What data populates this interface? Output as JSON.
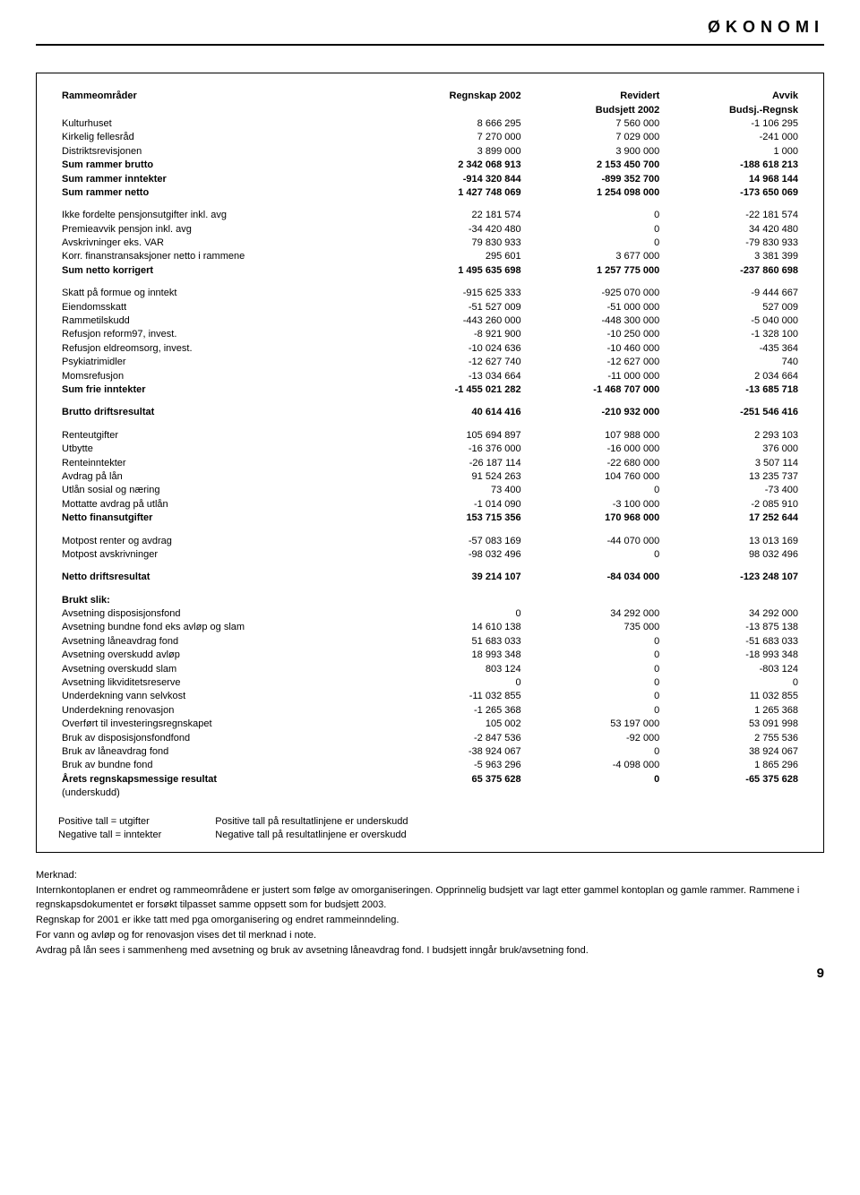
{
  "header": {
    "section_label": "ØKONOMI"
  },
  "table": {
    "columns": [
      {
        "key": "label",
        "header1": "Rammeområder",
        "header2": ""
      },
      {
        "key": "c1",
        "header1": "Regnskap 2002",
        "header2": ""
      },
      {
        "key": "c2",
        "header1": "Revidert",
        "header2": "Budsjett 2002"
      },
      {
        "key": "c3",
        "header1": "Avvik",
        "header2": "Budsj.-Regnsk"
      }
    ],
    "groups": [
      [
        {
          "label": "Kulturhuset",
          "c1": "8 666 295",
          "c2": "7 560 000",
          "c3": "-1 106 295"
        },
        {
          "label": "Kirkelig fellesråd",
          "c1": "7 270 000",
          "c2": "7 029 000",
          "c3": "-241 000"
        },
        {
          "label": "Distriktsrevisjonen",
          "c1": "3 899 000",
          "c2": "3 900 000",
          "c3": "1 000"
        },
        {
          "label": "Sum rammer brutto",
          "c1": "2 342 068 913",
          "c2": "2 153 450 700",
          "c3": "-188 618 213",
          "bold": true
        },
        {
          "label": "Sum rammer inntekter",
          "c1": "-914 320 844",
          "c2": "-899 352 700",
          "c3": "14 968 144",
          "bold": true
        },
        {
          "label": "Sum rammer netto",
          "c1": "1 427 748 069",
          "c2": "1 254 098 000",
          "c3": "-173 650 069",
          "bold": true
        }
      ],
      [
        {
          "label": "Ikke fordelte pensjonsutgifter inkl. avg",
          "c1": "22 181 574",
          "c2": "0",
          "c3": "-22 181 574"
        },
        {
          "label": "Premieavvik pensjon inkl. avg",
          "c1": "-34 420 480",
          "c2": "0",
          "c3": "34 420 480"
        },
        {
          "label": "Avskrivninger eks. VAR",
          "c1": "79 830 933",
          "c2": "0",
          "c3": "-79 830 933"
        },
        {
          "label": "Korr. finanstransaksjoner netto i rammene",
          "c1": "295 601",
          "c2": "3 677 000",
          "c3": "3 381 399"
        },
        {
          "label": "Sum netto korrigert",
          "c1": "1 495 635 698",
          "c2": "1 257 775 000",
          "c3": "-237 860 698",
          "bold": true
        }
      ],
      [
        {
          "label": "Skatt på formue og inntekt",
          "c1": "-915 625 333",
          "c2": "-925 070 000",
          "c3": "-9 444 667"
        },
        {
          "label": "Eiendomsskatt",
          "c1": "-51 527 009",
          "c2": "-51 000 000",
          "c3": "527 009"
        },
        {
          "label": "Rammetilskudd",
          "c1": "-443 260 000",
          "c2": "-448 300 000",
          "c3": "-5 040 000"
        },
        {
          "label": "Refusjon reform97, invest.",
          "c1": "-8 921 900",
          "c2": "-10 250 000",
          "c3": "-1 328 100"
        },
        {
          "label": "Refusjon eldreomsorg, invest.",
          "c1": "-10 024 636",
          "c2": "-10 460 000",
          "c3": "-435 364"
        },
        {
          "label": "Psykiatrimidler",
          "c1": "-12 627 740",
          "c2": "-12 627 000",
          "c3": "740"
        },
        {
          "label": "Momsrefusjon",
          "c1": "-13 034 664",
          "c2": "-11 000 000",
          "c3": "2 034 664"
        },
        {
          "label": "Sum frie inntekter",
          "c1": "-1 455 021 282",
          "c2": "-1 468 707 000",
          "c3": "-13 685 718",
          "bold": true
        }
      ],
      [
        {
          "label": "Brutto driftsresultat",
          "c1": "40 614 416",
          "c2": "-210 932 000",
          "c3": "-251 546 416",
          "bold": true
        }
      ],
      [
        {
          "label": "Renteutgifter",
          "c1": "105 694 897",
          "c2": "107 988 000",
          "c3": "2 293 103"
        },
        {
          "label": "Utbytte",
          "c1": "-16 376 000",
          "c2": "-16 000 000",
          "c3": "376 000"
        },
        {
          "label": "Renteinntekter",
          "c1": "-26 187 114",
          "c2": "-22 680 000",
          "c3": "3 507 114"
        },
        {
          "label": "Avdrag på lån",
          "c1": "91 524 263",
          "c2": "104 760 000",
          "c3": "13 235 737"
        },
        {
          "label": "Utlån sosial og næring",
          "c1": "73 400",
          "c2": "0",
          "c3": "-73 400"
        },
        {
          "label": "Mottatte avdrag på utlån",
          "c1": "-1 014 090",
          "c2": "-3 100 000",
          "c3": "-2 085 910"
        },
        {
          "label": "Netto finansutgifter",
          "c1": "153 715 356",
          "c2": "170 968 000",
          "c3": "17 252 644",
          "bold": true
        }
      ],
      [
        {
          "label": "Motpost renter og avdrag",
          "c1": "-57 083 169",
          "c2": "-44 070 000",
          "c3": "13 013 169"
        },
        {
          "label": "Motpost avskrivninger",
          "c1": "-98 032 496",
          "c2": "0",
          "c3": "98 032 496"
        }
      ],
      [
        {
          "label": "Netto driftsresultat",
          "c1": "39 214 107",
          "c2": "-84 034 000",
          "c3": "-123 248 107",
          "bold": true
        }
      ],
      [
        {
          "label": "Brukt slik:",
          "c1": "",
          "c2": "",
          "c3": "",
          "bold": true
        },
        {
          "label": "Avsetning disposisjonsfond",
          "c1": "0",
          "c2": "34 292 000",
          "c3": "34 292 000"
        },
        {
          "label": "Avsetning bundne fond eks avløp og slam",
          "c1": "14 610 138",
          "c2": "735 000",
          "c3": "-13 875 138"
        },
        {
          "label": "Avsetning låneavdrag fond",
          "c1": "51 683 033",
          "c2": "0",
          "c3": "-51 683 033"
        },
        {
          "label": "Avsetning overskudd avløp",
          "c1": "18 993 348",
          "c2": "0",
          "c3": "-18 993 348"
        },
        {
          "label": "Avsetning overskudd slam",
          "c1": "803 124",
          "c2": "0",
          "c3": "-803 124"
        },
        {
          "label": "Avsetning likviditetsreserve",
          "c1": "0",
          "c2": "0",
          "c3": "0"
        },
        {
          "label": "Underdekning vann selvkost",
          "c1": "-11 032 855",
          "c2": "0",
          "c3": "11 032 855"
        },
        {
          "label": "Underdekning renovasjon",
          "c1": "-1 265 368",
          "c2": "0",
          "c3": "1 265 368"
        },
        {
          "label": "Overført til investeringsregnskapet",
          "c1": "105 002",
          "c2": "53 197 000",
          "c3": "53 091 998"
        },
        {
          "label": "Bruk av disposisjonsfondfond",
          "c1": "-2 847 536",
          "c2": "-92 000",
          "c3": "2 755 536"
        },
        {
          "label": "Bruk av låneavdrag fond",
          "c1": "-38 924 067",
          "c2": "0",
          "c3": "38 924 067"
        },
        {
          "label": "Bruk av bundne fond",
          "c1": "-5 963 296",
          "c2": "-4 098 000",
          "c3": "1 865 296"
        },
        {
          "label": "Årets regnskapsmessige resultat",
          "c1": "65 375 628",
          "c2": "0",
          "c3": "-65 375 628",
          "bold": true
        },
        {
          "label": "(underskudd)",
          "c1": "",
          "c2": "",
          "c3": ""
        }
      ]
    ],
    "legend": {
      "left": [
        "Positive tall = utgifter",
        "Negative tall = inntekter"
      ],
      "right": [
        "Positive tall på resultatlinjene er underskudd",
        "Negative tall på resultatlinjene er overskudd"
      ]
    }
  },
  "notes": {
    "heading": "Merknad:",
    "lines": [
      "Internkontoplanen er endret og rammeområdene er justert som følge av omorganiseringen. Opprinnelig budsjett var lagt etter gammel kontoplan og gamle rammer. Rammene i regnskapsdokumentet er forsøkt tilpasset samme oppsett som for budsjett 2003.",
      "Regnskap for 2001 er ikke tatt med pga omorganisering og endret rammeinndeling.",
      "For vann og avløp og for renovasjon vises det til merknad i note.",
      "Avdrag på lån sees i sammenheng med avsetning og bruk av avsetning låneavdrag fond. I budsjett inngår bruk/avsetning fond."
    ]
  },
  "page_number": "9"
}
